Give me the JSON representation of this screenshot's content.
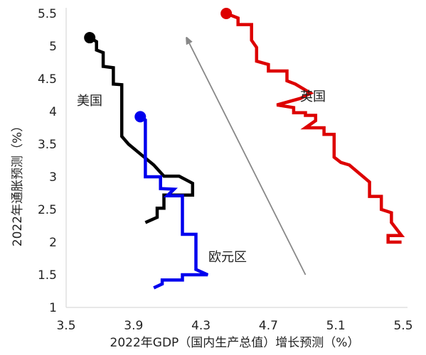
{
  "chart_data": {
    "type": "line",
    "xlabel": "2022年GDP（国内生产总值）增长预测（%）",
    "ylabel": "2022年通胀预测（%）",
    "xlim": [
      3.5,
      5.5
    ],
    "ylim": [
      1,
      5.5
    ],
    "x_ticks": [
      "3.5",
      "3.9",
      "4.3",
      "4.7",
      "5.1",
      "5.5"
    ],
    "y_ticks": [
      "1",
      "1.5",
      "2",
      "2.5",
      "3",
      "3.5",
      "4",
      "4.5",
      "5",
      "5.5"
    ],
    "grid": false,
    "legend": "none",
    "series": [
      {
        "name": "美国",
        "color": "#000000",
        "start_marker": true,
        "points": [
          [
            3.64,
            5.13
          ],
          [
            3.68,
            5.07
          ],
          [
            3.68,
            4.94
          ],
          [
            3.72,
            4.9
          ],
          [
            3.72,
            4.69
          ],
          [
            3.78,
            4.67
          ],
          [
            3.78,
            4.42
          ],
          [
            3.83,
            4.41
          ],
          [
            3.83,
            4.28
          ],
          [
            3.83,
            4.04
          ],
          [
            3.83,
            3.85
          ],
          [
            3.83,
            3.62
          ],
          [
            3.87,
            3.5
          ],
          [
            3.94,
            3.35
          ],
          [
            4.02,
            3.18
          ],
          [
            4.08,
            3.01
          ],
          [
            4.17,
            3.01
          ],
          [
            4.25,
            2.9
          ],
          [
            4.25,
            2.72
          ],
          [
            4.08,
            2.72
          ],
          [
            4.08,
            2.52
          ],
          [
            4.04,
            2.52
          ],
          [
            4.04,
            2.38
          ],
          [
            3.97,
            2.3
          ]
        ]
      },
      {
        "name": "欧元区",
        "color": "#0000ee",
        "start_marker": true,
        "points": [
          [
            3.94,
            3.92
          ],
          [
            3.97,
            3.87
          ],
          [
            3.97,
            3.26
          ],
          [
            3.97,
            3.0
          ],
          [
            4.06,
            3.0
          ],
          [
            4.06,
            2.82
          ],
          [
            4.14,
            2.81
          ],
          [
            4.1,
            2.71
          ],
          [
            4.19,
            2.71
          ],
          [
            4.19,
            2.5
          ],
          [
            4.19,
            2.12
          ],
          [
            4.27,
            2.12
          ],
          [
            4.27,
            1.88
          ],
          [
            4.27,
            1.58
          ],
          [
            4.34,
            1.5
          ],
          [
            4.19,
            1.5
          ],
          [
            4.19,
            1.42
          ],
          [
            4.07,
            1.42
          ],
          [
            4.07,
            1.36
          ],
          [
            4.02,
            1.3
          ]
        ]
      },
      {
        "name": "英国",
        "color": "#dd0000",
        "start_marker": true,
        "points": [
          [
            4.45,
            5.5
          ],
          [
            4.52,
            5.43
          ],
          [
            4.52,
            5.33
          ],
          [
            4.6,
            5.33
          ],
          [
            4.6,
            5.09
          ],
          [
            4.63,
            4.98
          ],
          [
            4.63,
            4.77
          ],
          [
            4.7,
            4.72
          ],
          [
            4.7,
            4.62
          ],
          [
            4.81,
            4.62
          ],
          [
            4.81,
            4.47
          ],
          [
            4.86,
            4.42
          ],
          [
            4.95,
            4.28
          ],
          [
            4.89,
            4.2
          ],
          [
            4.75,
            4.1
          ],
          [
            4.85,
            4.06
          ],
          [
            4.85,
            3.98
          ],
          [
            4.92,
            3.98
          ],
          [
            4.92,
            3.94
          ],
          [
            4.98,
            3.94
          ],
          [
            4.98,
            3.86
          ],
          [
            4.92,
            3.75
          ],
          [
            5.03,
            3.75
          ],
          [
            5.03,
            3.65
          ],
          [
            5.09,
            3.65
          ],
          [
            5.09,
            3.5
          ],
          [
            5.09,
            3.3
          ],
          [
            5.13,
            3.22
          ],
          [
            5.18,
            3.18
          ],
          [
            5.3,
            2.92
          ],
          [
            5.3,
            2.7
          ],
          [
            5.37,
            2.7
          ],
          [
            5.37,
            2.5
          ],
          [
            5.43,
            2.45
          ],
          [
            5.43,
            2.3
          ],
          [
            5.49,
            2.1
          ],
          [
            5.41,
            2.1
          ],
          [
            5.41,
            2.0
          ],
          [
            5.49,
            2.0
          ]
        ]
      }
    ],
    "annotations": [
      {
        "type": "arrow",
        "color": "#888888",
        "from": [
          4.92,
          1.5
        ],
        "to": [
          4.22,
          5.1
        ]
      }
    ]
  }
}
